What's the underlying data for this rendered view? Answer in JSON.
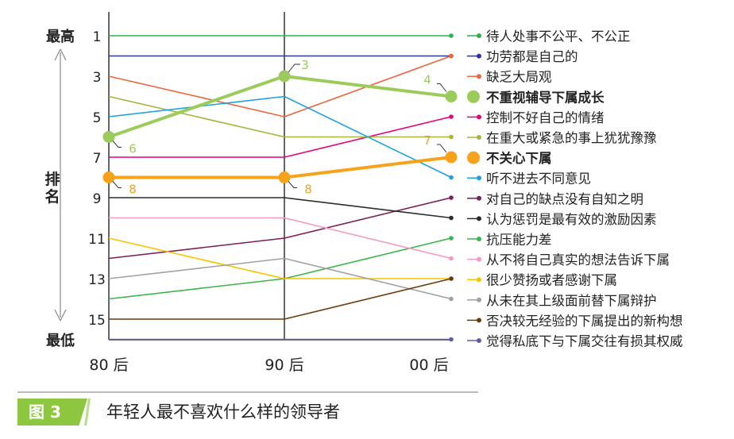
{
  "chart_data": {
    "type": "line",
    "categories": [
      "80 后",
      "90 后",
      "00 后"
    ],
    "y_top_label": "最高",
    "y_bottom_label": "最低",
    "ylabel": "排名",
    "yticks": [
      "1",
      "3",
      "5",
      "7",
      "9",
      "11",
      "13",
      "15"
    ],
    "ylim": [
      1,
      16
    ],
    "series": [
      {
        "name": "待人处事不公平、不公正",
        "values": [
          1,
          1,
          1
        ],
        "color": "#2db34a"
      },
      {
        "name": "功劳都是自己的",
        "values": [
          2,
          2,
          2
        ],
        "color": "#2b3990"
      },
      {
        "name": "缺乏大局观",
        "values": [
          3,
          5,
          2
        ],
        "color": "#f0643c"
      },
      {
        "name": "不重视辅导下属成长",
        "values": [
          6,
          3,
          4
        ],
        "color": "#9bcc5b",
        "highlight": true,
        "labels": [
          "6",
          "3",
          "4"
        ]
      },
      {
        "name": "控制不好自己的情绪",
        "values": [
          7,
          7,
          5
        ],
        "color": "#e6007e"
      },
      {
        "name": "在重大或紧急的事上犹犹豫豫",
        "values": [
          4,
          6,
          6
        ],
        "color": "#a8b43c"
      },
      {
        "name": "不关心下属",
        "values": [
          8,
          8,
          7
        ],
        "color": "#f7a21b",
        "highlight": true,
        "labels": [
          "8",
          "8",
          "7"
        ]
      },
      {
        "name": "听不进去不同意见",
        "values": [
          5,
          4,
          8
        ],
        "color": "#1ba1e2"
      },
      {
        "name": "对自己的缺点没有自知之明",
        "values": [
          12,
          11,
          9
        ],
        "color": "#7b1e5a"
      },
      {
        "name": "认为惩罚是最有效的激励因素",
        "values": [
          9,
          9,
          10
        ],
        "color": "#2b2b2b"
      },
      {
        "name": "抗压能力差",
        "values": [
          14,
          13,
          11
        ],
        "color": "#39b54a"
      },
      {
        "name": "从不将自己真实的想法告诉下属",
        "values": [
          10,
          10,
          12
        ],
        "color": "#f49ac1"
      },
      {
        "name": "很少赞扬或者感谢下属",
        "values": [
          11,
          13,
          13
        ],
        "color": "#f7c400"
      },
      {
        "name": "从未在其上级面前替下属辩护",
        "values": [
          13,
          12,
          14
        ],
        "color": "#a0a0a0"
      },
      {
        "name": "否决较无经验的下属提出的新构想",
        "values": [
          15,
          15,
          13
        ],
        "color": "#6b3a0a"
      },
      {
        "name": "觉得私底下与下属交往有损其权威",
        "values": [
          16,
          16,
          16
        ],
        "color": "#5b5ea6"
      }
    ]
  },
  "caption": {
    "badge": "图 3",
    "title": "年轻人最不喜欢什么样的领导者"
  }
}
